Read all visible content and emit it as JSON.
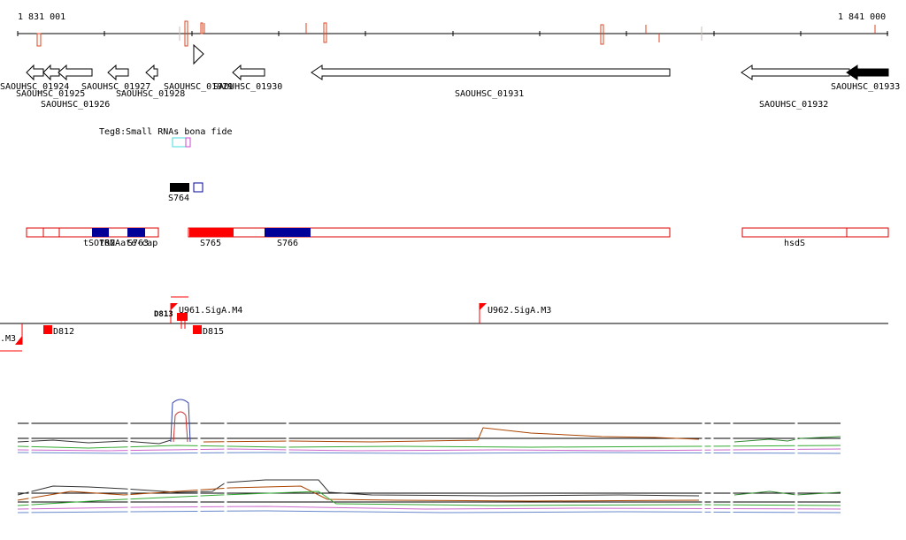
{
  "ruler": {
    "start_label": "1 831 001",
    "end_label": "1 841 000"
  },
  "genes": {
    "labels": [
      "SAOUHSC_01924",
      "SAOUHSC_01925",
      "SAOUHSC_01926",
      "SAOUHSC_01927",
      "SAOUHSC_01928",
      "SAOUHSC_01929",
      "SAOUHSC_01930",
      "SAOUHSC_01931",
      "SAOUHSC_01932",
      "SAOUHSC_01933"
    ]
  },
  "small_rna": {
    "track_label": "Teg8:Small RNAs bona fide"
  },
  "segments": {
    "s764": "S764"
  },
  "transcripts": {
    "labels": [
      "tSO762",
      "S763",
      "tRNAate-cap",
      "S765",
      "S766",
      "hsdS"
    ]
  },
  "binding_sites": {
    "u961": "U961.SigA.M4",
    "u962": "U962.SigA.M3",
    "left_partial": ".M3",
    "d812": "D812",
    "d815": "D815",
    "cluster": "D813"
  },
  "colors": {
    "strand_line": "#000000",
    "rna_cyan": "#44dddd",
    "rna_magenta": "#cc44cc",
    "transcript_outline": "#dd0000",
    "transcript_red": "#ff0000",
    "transcript_blue": "#000099",
    "site_red": "#ff0000",
    "tick_red": "#dd4422"
  }
}
